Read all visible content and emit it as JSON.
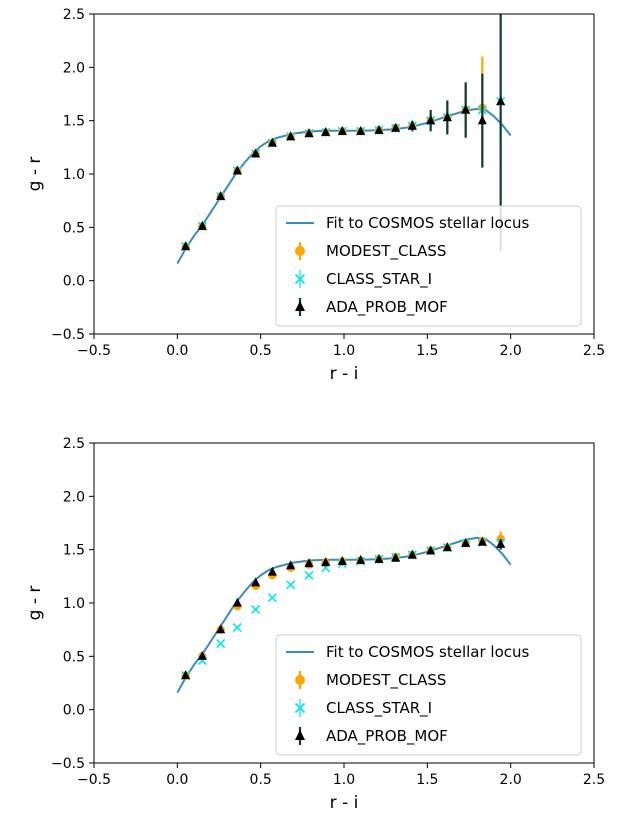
{
  "chart_data": [
    {
      "type": "scatter",
      "xlabel": "r - i",
      "ylabel": "g - r",
      "xlim": [
        -0.5,
        2.5
      ],
      "ylim": [
        -0.5,
        2.5
      ],
      "xticks": [
        "−0.5",
        "0.0",
        "0.5",
        "1.0",
        "1.5",
        "2.0",
        "2.5"
      ],
      "yticks": [
        "−0.5",
        "0.0",
        "0.5",
        "1.0",
        "1.5",
        "2.0",
        "2.5"
      ],
      "grid": false,
      "legend_position": "lower-right",
      "fit": {
        "name": "Fit to COSMOS stellar locus",
        "color": "#3b8bc2",
        "x": [
          0.0,
          0.05,
          0.1,
          0.15,
          0.2,
          0.25,
          0.3,
          0.35,
          0.4,
          0.45,
          0.5,
          0.55,
          0.6,
          0.65,
          0.7,
          0.8,
          0.9,
          1.0,
          1.1,
          1.2,
          1.3,
          1.4,
          1.5,
          1.6,
          1.7,
          1.75,
          1.8,
          1.85,
          1.9,
          1.95,
          2.0
        ],
        "y": [
          0.16,
          0.3,
          0.42,
          0.52,
          0.64,
          0.76,
          0.88,
          1.0,
          1.1,
          1.19,
          1.26,
          1.31,
          1.34,
          1.36,
          1.38,
          1.4,
          1.405,
          1.405,
          1.405,
          1.41,
          1.42,
          1.44,
          1.48,
          1.53,
          1.58,
          1.6,
          1.61,
          1.6,
          1.54,
          1.46,
          1.36
        ]
      },
      "series": [
        {
          "name": "MODEST_CLASS",
          "color": "#ffa500",
          "marker": "circle",
          "x": [
            0.05,
            0.15,
            0.26,
            0.36,
            0.47,
            0.57,
            0.68,
            0.79,
            0.89,
            0.99,
            1.1,
            1.21,
            1.31,
            1.41,
            1.52,
            1.62,
            1.73,
            1.83
          ],
          "y": [
            0.32,
            0.51,
            0.79,
            1.03,
            1.19,
            1.29,
            1.35,
            1.38,
            1.39,
            1.4,
            1.4,
            1.41,
            1.43,
            1.45,
            1.5,
            1.53,
            1.6,
            1.62
          ],
          "err": [
            0,
            0,
            0,
            0,
            0,
            0,
            0,
            0,
            0,
            0,
            0,
            0,
            0,
            0,
            0.06,
            0.14,
            0.25,
            0.48
          ]
        },
        {
          "name": "CLASS_STAR_I",
          "color": "#00e5ee",
          "marker": "x",
          "x": [
            0.05,
            0.15,
            0.26,
            0.36,
            0.47,
            0.57,
            0.68,
            0.79,
            0.89,
            0.99,
            1.1,
            1.21,
            1.31,
            1.41,
            1.52,
            1.62,
            1.73,
            1.83,
            1.94
          ],
          "y": [
            0.32,
            0.51,
            0.79,
            1.03,
            1.19,
            1.29,
            1.35,
            1.38,
            1.39,
            1.4,
            1.4,
            1.41,
            1.43,
            1.45,
            1.5,
            1.53,
            1.6,
            1.6,
            1.68
          ],
          "err": [
            0,
            0,
            0,
            0,
            0,
            0,
            0,
            0,
            0,
            0,
            0,
            0,
            0,
            0,
            0,
            0,
            0,
            0,
            0
          ]
        },
        {
          "name": "ADA_PROB_MOF",
          "color": "#000000",
          "marker": "triangle",
          "errcolor": "#0d3b3b",
          "x": [
            0.05,
            0.15,
            0.26,
            0.36,
            0.47,
            0.57,
            0.68,
            0.79,
            0.89,
            0.99,
            1.1,
            1.21,
            1.31,
            1.41,
            1.52,
            1.62,
            1.73,
            1.83,
            1.94
          ],
          "y": [
            0.32,
            0.51,
            0.79,
            1.03,
            1.19,
            1.29,
            1.35,
            1.38,
            1.39,
            1.4,
            1.4,
            1.41,
            1.43,
            1.45,
            1.5,
            1.53,
            1.6,
            1.5,
            1.68
          ],
          "err": [
            0,
            0,
            0,
            0,
            0,
            0,
            0,
            0,
            0,
            0,
            0,
            0.02,
            0.03,
            0.05,
            0.1,
            0.16,
            0.26,
            0.44,
            1.4
          ]
        }
      ]
    },
    {
      "type": "scatter",
      "xlabel": "r - i",
      "ylabel": "g - r",
      "xlim": [
        -0.5,
        2.5
      ],
      "ylim": [
        -0.5,
        2.5
      ],
      "xticks": [
        "−0.5",
        "0.0",
        "0.5",
        "1.0",
        "1.5",
        "2.0",
        "2.5"
      ],
      "yticks": [
        "−0.5",
        "0.0",
        "0.5",
        "1.0",
        "1.5",
        "2.0",
        "2.5"
      ],
      "grid": false,
      "legend_position": "lower-right",
      "fit": {
        "name": "Fit to COSMOS stellar locus",
        "color": "#3b8bc2",
        "x": [
          0.0,
          0.05,
          0.1,
          0.15,
          0.2,
          0.25,
          0.3,
          0.35,
          0.4,
          0.45,
          0.5,
          0.55,
          0.6,
          0.65,
          0.7,
          0.8,
          0.9,
          1.0,
          1.1,
          1.2,
          1.3,
          1.4,
          1.5,
          1.6,
          1.7,
          1.75,
          1.8,
          1.85,
          1.9,
          1.95,
          2.0
        ],
        "y": [
          0.16,
          0.3,
          0.42,
          0.52,
          0.64,
          0.76,
          0.88,
          1.0,
          1.1,
          1.19,
          1.26,
          1.31,
          1.34,
          1.36,
          1.38,
          1.4,
          1.405,
          1.405,
          1.405,
          1.41,
          1.42,
          1.44,
          1.48,
          1.53,
          1.58,
          1.6,
          1.61,
          1.6,
          1.54,
          1.46,
          1.36
        ]
      },
      "series": [
        {
          "name": "MODEST_CLASS",
          "color": "#ffa500",
          "marker": "circle",
          "x": [
            0.05,
            0.15,
            0.26,
            0.36,
            0.47,
            0.57,
            0.68,
            0.79,
            0.89,
            0.99,
            1.1,
            1.21,
            1.31,
            1.41,
            1.52,
            1.62,
            1.73,
            1.83,
            1.94
          ],
          "y": [
            0.32,
            0.5,
            0.75,
            0.97,
            1.16,
            1.26,
            1.33,
            1.36,
            1.38,
            1.39,
            1.4,
            1.41,
            1.43,
            1.45,
            1.49,
            1.52,
            1.56,
            1.58,
            1.6
          ],
          "err": [
            0,
            0,
            0,
            0,
            0,
            0,
            0,
            0,
            0,
            0,
            0,
            0,
            0,
            0,
            0,
            0.02,
            0.03,
            0.04,
            0.07
          ]
        },
        {
          "name": "CLASS_STAR_I",
          "color": "#00e5ee",
          "marker": "x",
          "x": [
            0.05,
            0.15,
            0.26,
            0.36,
            0.47,
            0.57,
            0.68,
            0.79,
            0.89,
            0.99,
            1.1,
            1.21,
            1.31,
            1.41,
            1.52,
            1.62,
            1.73,
            1.83,
            1.94
          ],
          "y": [
            0.32,
            0.46,
            0.62,
            0.77,
            0.94,
            1.05,
            1.17,
            1.26,
            1.33,
            1.37,
            1.39,
            1.41,
            1.43,
            1.45,
            1.49,
            1.52,
            1.56,
            1.57,
            1.56
          ],
          "err": [
            0,
            0,
            0,
            0,
            0,
            0,
            0,
            0,
            0,
            0,
            0,
            0,
            0,
            0,
            0,
            0,
            0,
            0,
            0
          ]
        },
        {
          "name": "ADA_PROB_MOF",
          "color": "#000000",
          "marker": "triangle",
          "errcolor": "#0d3b3b",
          "x": [
            0.05,
            0.15,
            0.26,
            0.36,
            0.47,
            0.57,
            0.68,
            0.79,
            0.89,
            0.99,
            1.1,
            1.21,
            1.31,
            1.41,
            1.52,
            1.62,
            1.73,
            1.83,
            1.94
          ],
          "y": [
            0.32,
            0.5,
            0.75,
            1.0,
            1.19,
            1.29,
            1.35,
            1.37,
            1.38,
            1.39,
            1.4,
            1.41,
            1.42,
            1.45,
            1.49,
            1.52,
            1.56,
            1.57,
            1.55
          ],
          "err": [
            0,
            0,
            0,
            0,
            0,
            0,
            0,
            0,
            0,
            0,
            0,
            0,
            0,
            0,
            0,
            0.02,
            0.03,
            0.03,
            0.05
          ]
        }
      ]
    }
  ]
}
